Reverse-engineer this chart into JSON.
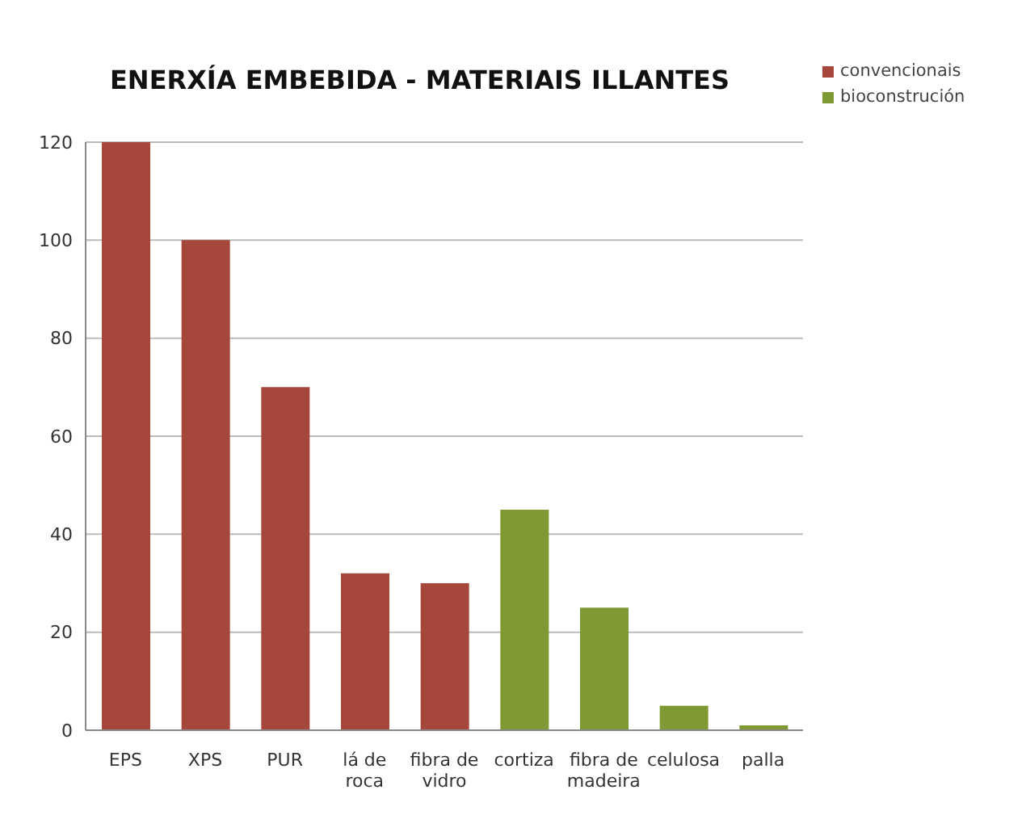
{
  "chart_data": {
    "type": "bar",
    "title": "ENERXÍA EMBEBIDA - MATERIAIS ILLANTES",
    "categories": [
      "EPS",
      "XPS",
      "PUR",
      "lá de roca",
      "fibra de vidro",
      "cortiza",
      "fibra de madeira",
      "celulosa",
      "palla"
    ],
    "series": [
      {
        "name": "convencionais",
        "color": "#a5473a",
        "values": [
          120,
          100,
          70,
          32,
          30,
          null,
          null,
          null,
          null
        ]
      },
      {
        "name": "bioconstrución",
        "color": "#7f9a35",
        "values": [
          null,
          null,
          null,
          null,
          null,
          45,
          25,
          5,
          1
        ]
      }
    ],
    "ylim": [
      0,
      120
    ],
    "yticks": [
      0,
      20,
      40,
      60,
      80,
      100,
      120
    ],
    "grid": "y",
    "legend": "top right"
  }
}
